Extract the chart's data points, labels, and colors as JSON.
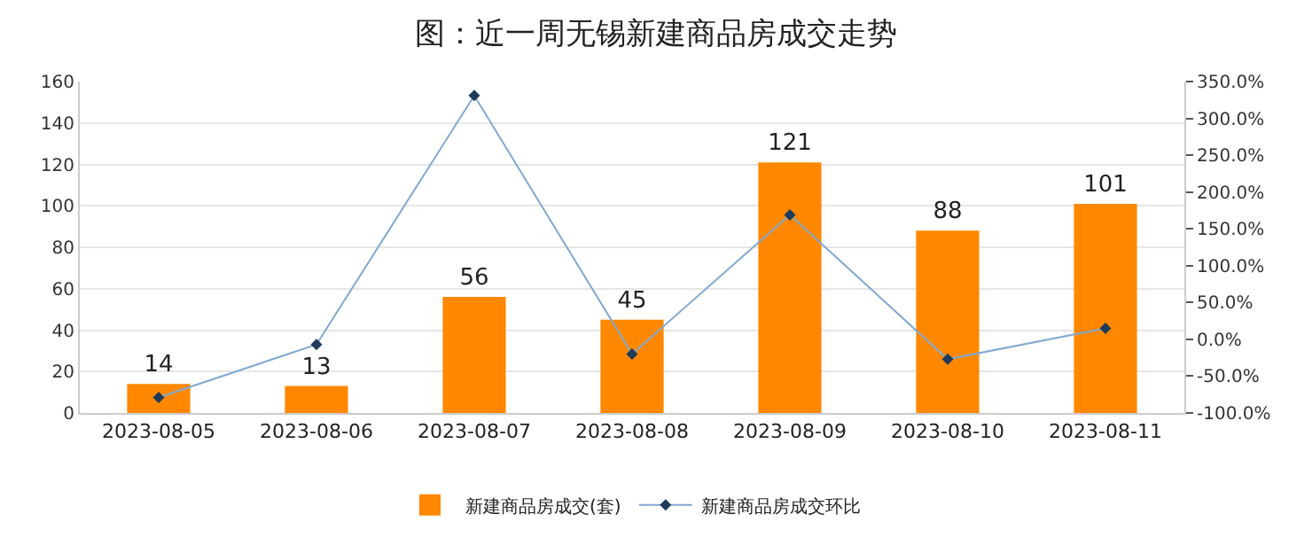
{
  "chart_data": {
    "type": "bar",
    "title": "图：近一周无锡新建商品房成交走势",
    "categories": [
      "2023-08-05",
      "2023-08-06",
      "2023-08-07",
      "2023-08-08",
      "2023-08-09",
      "2023-08-10",
      "2023-08-11"
    ],
    "series": [
      {
        "name": "新建商品房成交(套)",
        "color": "#ff8800",
        "values": [
          14,
          13,
          56,
          45,
          121,
          88,
          101
        ],
        "value_labels": [
          "14",
          "13",
          "56",
          "45",
          "121",
          "88",
          "101"
        ]
      },
      {
        "name": "新建商品房成交环比",
        "type": "line",
        "axis": "y2",
        "color": "#7fa8d0",
        "marker": "diamond",
        "values": [
          -79,
          -7,
          331,
          -20,
          169,
          -27,
          15
        ]
      }
    ],
    "ylim": [
      0,
      160
    ],
    "yticks": [
      0,
      20,
      40,
      60,
      80,
      100,
      120,
      140,
      160
    ],
    "y2lim": [
      -100,
      350
    ],
    "y2ticks": [
      {
        "value": -100,
        "label": "-100.0%"
      },
      {
        "value": -50,
        "label": "-50.0%"
      },
      {
        "value": 0,
        "label": "0.0%"
      },
      {
        "value": 50,
        "label": "50.0%"
      },
      {
        "value": 100,
        "label": "100.0%"
      },
      {
        "value": 150,
        "label": "150.0%"
      },
      {
        "value": 200,
        "label": "200.0%"
      },
      {
        "value": 250,
        "label": "250.0%"
      },
      {
        "value": 300,
        "label": "300.0%"
      },
      {
        "value": 350,
        "label": "350.0%"
      }
    ],
    "grid": "y",
    "legend": "bottom"
  }
}
